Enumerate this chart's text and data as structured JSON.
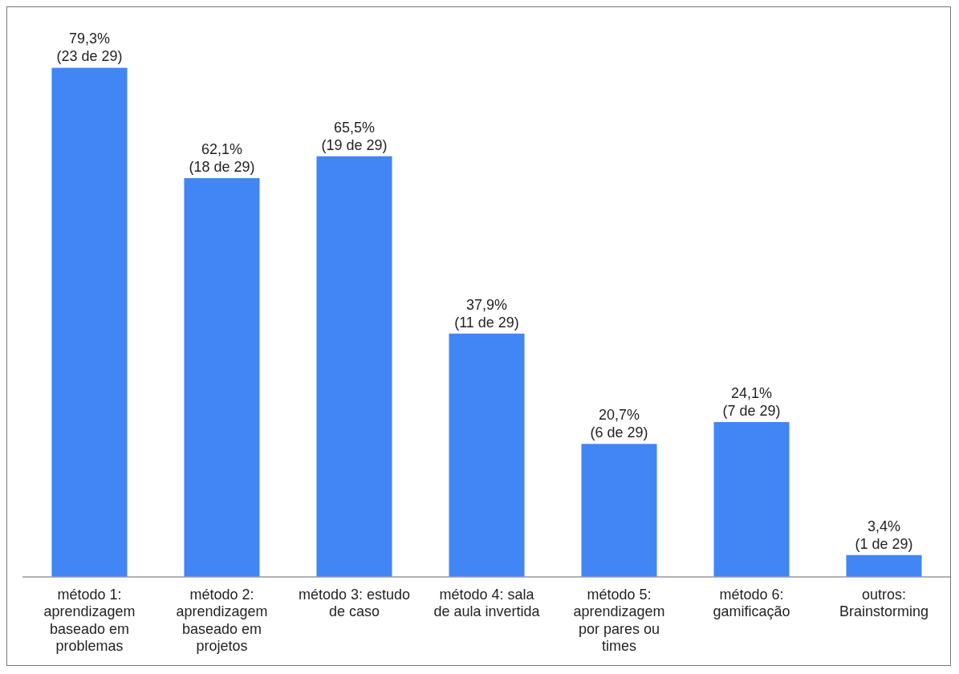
{
  "chart_data": {
    "type": "bar",
    "categories": [
      "método 1: aprendizagem baseado em problemas",
      "método 2: aprendizagem baseado em projetos",
      "método 3: estudo de caso",
      "método 4: sala de aula invertida",
      "método 5: aprendizagem por pares ou times",
      "método 6: gamificação",
      "outros: Brainstorming"
    ],
    "values": [
      79.3,
      62.1,
      65.5,
      37.9,
      20.7,
      24.1,
      3.4
    ],
    "value_labels": [
      "79,3%\n(23 de 29)",
      "62,1%\n(18 de 29)",
      "65,5%\n(19 de 29)",
      "37,9%\n(11 de 29)",
      "20,7%\n(6 de 29)",
      "24,1%\n(7 de 29)",
      "3,4%\n(1 de 29)"
    ],
    "color": "#4285f4",
    "grid": false,
    "legend": false
  }
}
